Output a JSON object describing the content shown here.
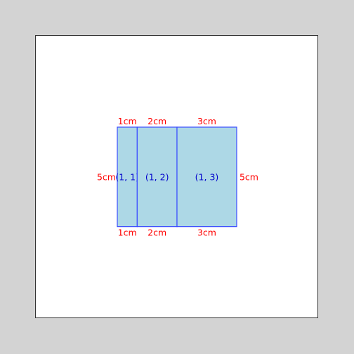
{
  "colors": {
    "background": "#d3d3d3",
    "panel": "#ffffff",
    "cell_fill": "#add8e6",
    "cell_stroke": "#3a4cff",
    "cell_label": "#0000cc",
    "dimension_label": "#ff0000"
  },
  "grid": {
    "columns": [
      {
        "width_cm": 1,
        "label": "(1, 1)",
        "top_dim": "1cm",
        "bottom_dim": "1cm"
      },
      {
        "width_cm": 2,
        "label": "(1, 2)",
        "top_dim": "2cm",
        "bottom_dim": "2cm"
      },
      {
        "width_cm": 3,
        "label": "(1, 3)",
        "top_dim": "3cm",
        "bottom_dim": "3cm"
      }
    ],
    "height_cm": 5,
    "left_dim": "5cm",
    "right_dim": "5cm"
  }
}
